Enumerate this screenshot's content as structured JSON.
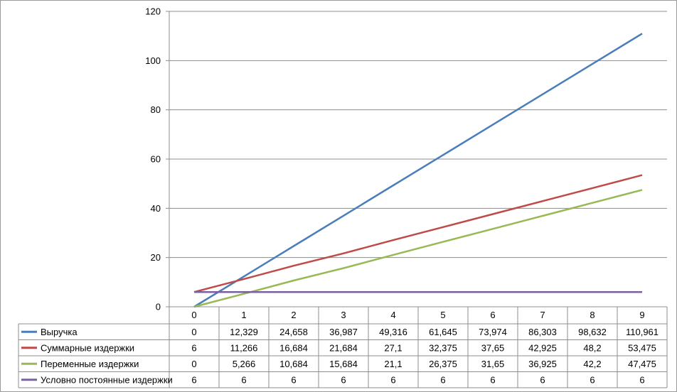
{
  "chart_data": {
    "type": "line",
    "title": "",
    "xlabel": "",
    "ylabel": "",
    "ylim": [
      0,
      120
    ],
    "yticks": [
      0,
      20,
      40,
      60,
      80,
      100,
      120
    ],
    "grid": true,
    "legend": "data-table-below",
    "categories": [
      "0",
      "1",
      "2",
      "3",
      "4",
      "5",
      "6",
      "7",
      "8",
      "9"
    ],
    "series": [
      {
        "name": "Выручка",
        "color": "#4a7ebb",
        "values": [
          0,
          12.329,
          24.658,
          36.987,
          49.316,
          61.645,
          73.974,
          86.303,
          98.632,
          110.961
        ],
        "labels": [
          "0",
          "12,329",
          "24,658",
          "36,987",
          "49,316",
          "61,645",
          "73,974",
          "86,303",
          "98,632",
          "110,961"
        ]
      },
      {
        "name": "Суммарные издержки",
        "color": "#be4b48",
        "values": [
          6,
          11.266,
          16.684,
          21.684,
          27.1,
          32.375,
          37.65,
          42.925,
          48.2,
          53.475
        ],
        "labels": [
          "6",
          "11,266",
          "16,684",
          "21,684",
          "27,1",
          "32,375",
          "37,65",
          "42,925",
          "48,2",
          "53,475"
        ]
      },
      {
        "name": "Переменные издержки",
        "color": "#98b954",
        "values": [
          0,
          5.266,
          10.684,
          15.684,
          21.1,
          26.375,
          31.65,
          36.925,
          42.2,
          47.475
        ],
        "labels": [
          "0",
          "5,266",
          "10,684",
          "15,684",
          "21,1",
          "26,375",
          "31,65",
          "36,925",
          "42,2",
          "47,475"
        ]
      },
      {
        "name": "Условно постоянные издержки",
        "color": "#7d60a0",
        "values": [
          6,
          6,
          6,
          6,
          6,
          6,
          6,
          6,
          6,
          6
        ],
        "labels": [
          "6",
          "6",
          "6",
          "6",
          "6",
          "6",
          "6",
          "6",
          "6",
          "6"
        ]
      }
    ]
  }
}
